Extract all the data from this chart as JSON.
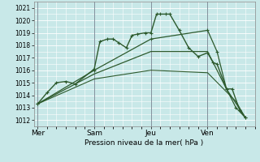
{
  "xlabel": "Pression niveau de la mer( hPa )",
  "bg_color": "#c8e8e8",
  "grid_color": "#ffffff",
  "line_color": "#2d5a2d",
  "ylim": [
    1011.5,
    1021.5
  ],
  "yticks": [
    1012,
    1013,
    1014,
    1015,
    1016,
    1017,
    1018,
    1019,
    1020,
    1021
  ],
  "xtick_labels": [
    "Mer",
    "Sam",
    "Jeu",
    "Ven"
  ],
  "xtick_positions": [
    0,
    3,
    6,
    9
  ],
  "xlim": [
    -0.2,
    11.5
  ],
  "vline_color": "#556677",
  "series": [
    {
      "pts": [
        [
          0,
          1013.3
        ],
        [
          0.5,
          1014.2
        ],
        [
          1,
          1015.0
        ],
        [
          1.5,
          1015.1
        ],
        [
          2,
          1014.9
        ],
        [
          3,
          1016.1
        ],
        [
          3.3,
          1018.3
        ],
        [
          3.7,
          1018.5
        ],
        [
          4.0,
          1018.5
        ],
        [
          4.3,
          1018.2
        ],
        [
          4.7,
          1017.8
        ],
        [
          5.0,
          1018.8
        ],
        [
          5.3,
          1018.9
        ],
        [
          5.7,
          1019.0
        ],
        [
          6.0,
          1019.0
        ],
        [
          6.3,
          1020.5
        ],
        [
          6.5,
          1020.5
        ],
        [
          6.8,
          1020.5
        ],
        [
          7.0,
          1020.5
        ],
        [
          7.5,
          1019.2
        ],
        [
          8.0,
          1017.8
        ],
        [
          8.5,
          1017.1
        ],
        [
          9.0,
          1017.4
        ],
        [
          9.3,
          1016.6
        ],
        [
          9.5,
          1016.5
        ],
        [
          10.0,
          1014.5
        ],
        [
          10.3,
          1014.5
        ],
        [
          10.7,
          1012.8
        ],
        [
          11.0,
          1012.2
        ]
      ],
      "marker": true,
      "lw": 1.0
    },
    {
      "pts": [
        [
          0,
          1013.3
        ],
        [
          3,
          1016.0
        ],
        [
          6,
          1018.5
        ],
        [
          9,
          1019.2
        ],
        [
          9.5,
          1017.5
        ],
        [
          10.0,
          1014.5
        ],
        [
          10.5,
          1013.0
        ],
        [
          11.0,
          1012.2
        ]
      ],
      "marker": true,
      "lw": 0.9
    },
    {
      "pts": [
        [
          0,
          1013.3
        ],
        [
          3,
          1015.7
        ],
        [
          6,
          1017.5
        ],
        [
          9,
          1017.5
        ],
        [
          10.0,
          1014.5
        ],
        [
          11.0,
          1012.2
        ]
      ],
      "marker": false,
      "lw": 0.9
    },
    {
      "pts": [
        [
          0,
          1013.3
        ],
        [
          3,
          1015.3
        ],
        [
          6,
          1016.0
        ],
        [
          9,
          1015.8
        ],
        [
          10.5,
          1013.5
        ],
        [
          11.0,
          1012.2
        ]
      ],
      "marker": false,
      "lw": 0.8
    }
  ]
}
